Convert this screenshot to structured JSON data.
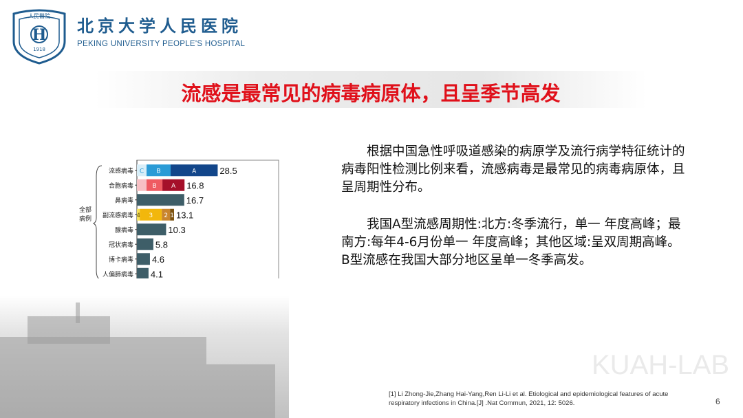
{
  "header": {
    "logo_text": "人民醫院 PEKING UNIVERSITY PEOPLE'S HOSPITAL 1918",
    "hospital_name_cn": "北京大学人民医院",
    "hospital_name_en": "PEKING UNIVERSITY PEOPLE'S HOSPITAL"
  },
  "title": "流感是最常见的病毒病原体，且呈季节高发",
  "chart_data": {
    "type": "bar",
    "orientation": "horizontal",
    "group_label": "全部病例",
    "categories": [
      "流感病毒",
      "合胞病毒",
      "鼻病毒",
      "副流感病毒",
      "腺病毒",
      "冠状病毒",
      "博卡病毒",
      "人偏肺病毒"
    ],
    "values": [
      28.5,
      16.8,
      16.7,
      13.1,
      10.3,
      5.8,
      4.6,
      4.1
    ],
    "value_labels": [
      "28.5",
      "16.8",
      "16.7",
      "13.1",
      "10.3",
      "5.8",
      "4.6",
      "4.1"
    ],
    "xlim": [
      0,
      50
    ],
    "stacks": {
      "流感病毒": [
        {
          "label": "C",
          "value": 3.4,
          "color": "#d8eef8"
        },
        {
          "label": "B",
          "value": 8.5,
          "color": "#2a9bd6"
        },
        {
          "label": "A",
          "value": 16.6,
          "color": "#12468a"
        }
      ],
      "合胞病毒": [
        {
          "label": "",
          "value": 3.4,
          "color": "#f7c0c4"
        },
        {
          "label": "B",
          "value": 5.6,
          "color": "#ef5b62"
        },
        {
          "label": "A",
          "value": 7.8,
          "color": "#a5102a"
        }
      ],
      "副流感病毒": [
        {
          "label": "4",
          "value": 1.0,
          "color": "#f7e25a"
        },
        {
          "label": "3",
          "value": 7.8,
          "color": "#f2b70c"
        },
        {
          "label": "2",
          "value": 2.9,
          "color": "#c9852d"
        },
        {
          "label": "1",
          "value": 1.4,
          "color": "#7c5210"
        }
      ]
    },
    "default_color": "#3e5e68"
  },
  "paragraphs": [
    "根据中国急性呼吸道感染的病原学及流行病学特征统计的病毒阳性检测比例来看，流感病毒是最常见的病毒病原体，且呈周期性分布。",
    "我国A型流感周期性:北方:冬季流行，单一 年度高峰；最南方:每年4-6月份单一 年度高峰；其他区域:呈双周期高峰。B型流感在我国大部分地区呈单一冬季高发。"
  ],
  "reference": "[1] Li Zhong-Jie,Zhang Hai-Yang,Ren Li-Li et al. Etiological and epidemiological features of acute respiratory infections in China.[J] .Nat Commun, 2021, 12: 5026.",
  "watermark": "KUAH-LAB",
  "page_number": "6"
}
